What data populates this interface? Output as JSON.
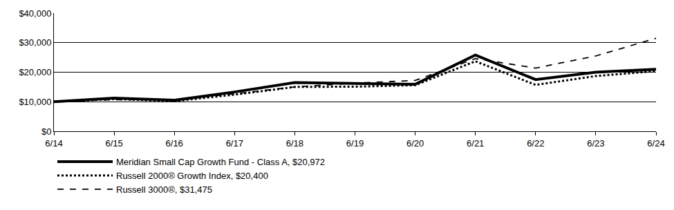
{
  "chart_data": {
    "type": "line",
    "categories": [
      "6/14",
      "6/15",
      "6/16",
      "6/17",
      "6/18",
      "6/19",
      "6/20",
      "6/21",
      "6/22",
      "6/23",
      "6/24"
    ],
    "series": [
      {
        "name": "Meridian Small Cap Growth Fund - Class A, $20,972",
        "color": "#000000",
        "line_style": "solid",
        "values": [
          10000,
          11200,
          10500,
          13300,
          16500,
          16200,
          15900,
          25800,
          17500,
          20000,
          20972
        ]
      },
      {
        "name": "Russell 2000® Growth Index, $20,400",
        "color": "#000000",
        "line_style": "dot",
        "values": [
          10000,
          10900,
          10200,
          12400,
          15000,
          15100,
          15600,
          23700,
          15700,
          18700,
          20400
        ]
      },
      {
        "name": "Russell 3000®, $31,475",
        "color": "#000000",
        "line_style": "dash",
        "values": [
          10000,
          10700,
          10600,
          12700,
          15000,
          16300,
          17200,
          24600,
          21400,
          25500,
          31475
        ]
      }
    ],
    "ylim": [
      0,
      40000
    ],
    "yticks": [
      {
        "value": 0,
        "label": "$0"
      },
      {
        "value": 10000,
        "label": "$10,000"
      },
      {
        "value": 20000,
        "label": "$20,000"
      },
      {
        "value": 30000,
        "label": "$30,000"
      },
      {
        "value": 40000,
        "label": "$40,000"
      }
    ],
    "grid": true,
    "legend": "bottom"
  }
}
